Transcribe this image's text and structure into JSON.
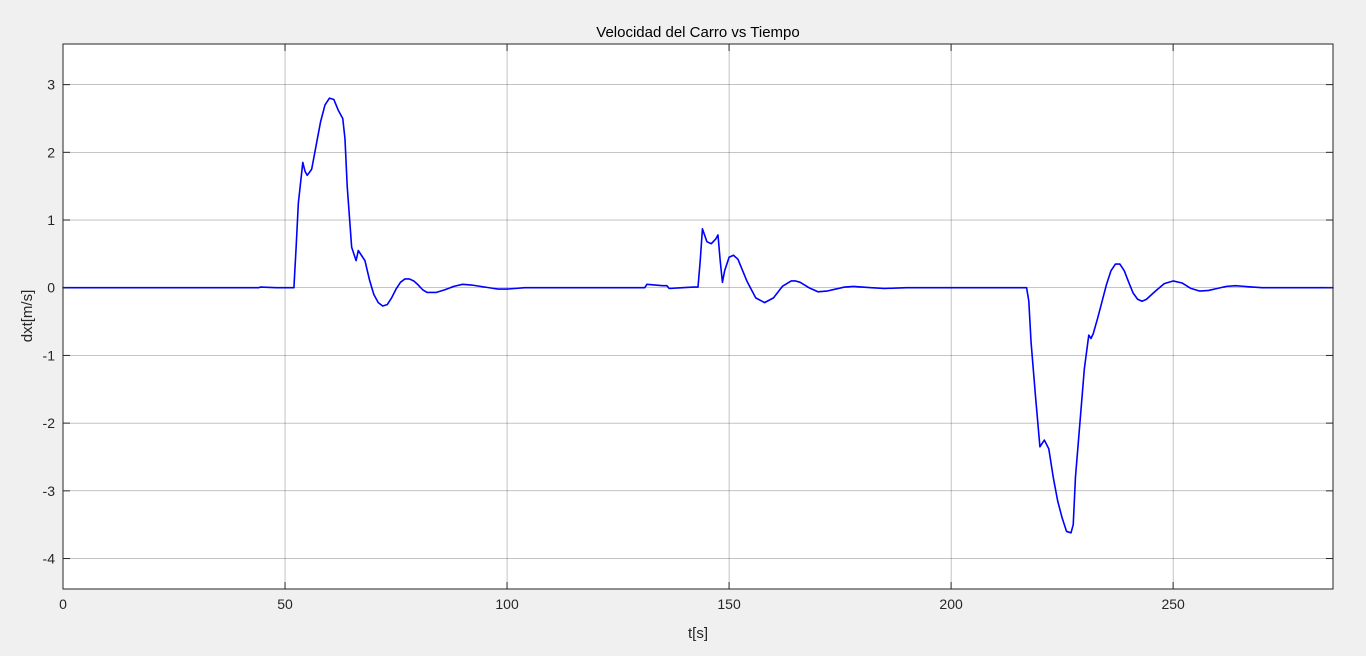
{
  "chart_data": {
    "type": "line",
    "title": "Velocidad del Carro vs Tiempo",
    "xlabel": "t[s]",
    "ylabel": "dxt[m/s]",
    "xlim": [
      0,
      286
    ],
    "ylim": [
      -4.45,
      3.6
    ],
    "xticks": [
      0,
      50,
      100,
      150,
      200,
      250
    ],
    "yticks": [
      -4,
      -3,
      -2,
      -1,
      0,
      1,
      2,
      3
    ],
    "xtick_labels": [
      "0",
      "50",
      "100",
      "150",
      "200",
      "250"
    ],
    "ytick_labels": [
      "-4",
      "-3",
      "-2",
      "-1",
      "0",
      "1",
      "2",
      "3"
    ],
    "grid": true,
    "legend": "none",
    "series": [
      {
        "color": "#0000ff",
        "x": [
          0,
          44,
          44.5,
          48,
          52,
          52.5,
          53,
          54,
          54.5,
          55,
          56,
          57,
          58,
          59,
          60,
          61,
          62,
          63,
          63.5,
          64,
          65,
          66,
          66.5,
          67,
          68,
          69,
          70,
          71,
          72,
          73,
          74,
          75,
          76,
          77,
          78,
          79,
          80,
          81,
          82,
          84,
          86,
          88,
          90,
          92,
          94,
          96,
          98,
          100,
          104,
          110,
          120,
          131,
          131.5,
          135,
          136,
          136.5,
          142,
          143,
          143.5,
          144,
          145,
          146,
          147,
          147.5,
          148,
          148.5,
          149,
          150,
          151,
          152,
          154,
          156,
          158,
          160,
          162,
          164,
          165,
          166,
          168,
          170,
          172,
          174,
          176,
          178,
          180,
          182,
          185,
          190,
          200,
          210,
          217,
          217.5,
          218,
          219,
          220,
          220.5,
          221,
          222,
          223,
          224,
          225,
          226,
          227,
          227.5,
          228,
          229,
          230,
          231,
          231.5,
          232,
          233,
          234,
          235,
          236,
          237,
          238,
          239,
          240,
          241,
          242,
          243,
          244,
          246,
          248,
          250,
          252,
          254,
          256,
          258,
          260,
          262,
          264,
          266,
          268,
          270,
          275,
          286
        ],
        "values": [
          0,
          0,
          0.01,
          0,
          0,
          0.6,
          1.25,
          1.85,
          1.72,
          1.66,
          1.75,
          2.1,
          2.45,
          2.7,
          2.8,
          2.78,
          2.62,
          2.5,
          2.2,
          1.5,
          0.6,
          0.4,
          0.55,
          0.5,
          0.4,
          0.12,
          -0.1,
          -0.22,
          -0.27,
          -0.25,
          -0.15,
          -0.02,
          0.08,
          0.13,
          0.13,
          0.1,
          0.04,
          -0.03,
          -0.07,
          -0.07,
          -0.03,
          0.02,
          0.05,
          0.04,
          0.02,
          0,
          -0.02,
          -0.02,
          0,
          0,
          0,
          0,
          0.05,
          0.03,
          0.03,
          -0.01,
          0.01,
          0.01,
          0.4,
          0.87,
          0.68,
          0.65,
          0.72,
          0.78,
          0.4,
          0.08,
          0.25,
          0.45,
          0.48,
          0.42,
          0.1,
          -0.15,
          -0.22,
          -0.15,
          0.02,
          0.1,
          0.1,
          0.08,
          0,
          -0.06,
          -0.05,
          -0.02,
          0.01,
          0.02,
          0.01,
          0,
          -0.01,
          0,
          0,
          0,
          0,
          -0.2,
          -0.8,
          -1.6,
          -2.35,
          -2.3,
          -2.25,
          -2.38,
          -2.8,
          -3.15,
          -3.4,
          -3.6,
          -3.62,
          -3.5,
          -2.8,
          -2.0,
          -1.2,
          -0.7,
          -0.75,
          -0.68,
          -0.45,
          -0.2,
          0.05,
          0.25,
          0.35,
          0.35,
          0.25,
          0.08,
          -0.08,
          -0.17,
          -0.2,
          -0.17,
          -0.05,
          0.06,
          0.1,
          0.07,
          -0.01,
          -0.05,
          -0.04,
          -0.01,
          0.02,
          0.03,
          0.02,
          0.01,
          0,
          0,
          0
        ]
      }
    ]
  }
}
